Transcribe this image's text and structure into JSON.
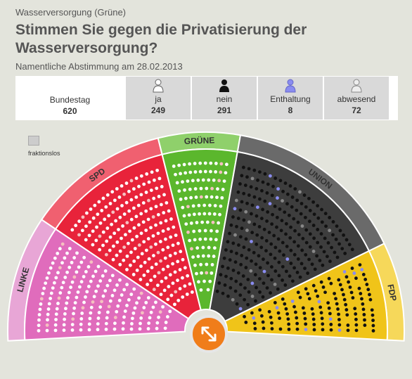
{
  "header": {
    "kicker": "Wasserversorgung (Grüne)",
    "title": "Stimmen Sie gegen die Privatisierung der Wasserversorgung?",
    "subtitle": "Namentliche Abstimmung am 28.02.2013"
  },
  "stats": {
    "total": {
      "label": "Bundestag",
      "value": "620"
    },
    "ja": {
      "label": "ja",
      "value": "249"
    },
    "nein": {
      "label": "nein",
      "value": "291"
    },
    "enthaltung": {
      "label": "Enthaltung",
      "value": "8"
    },
    "abwesend": {
      "label": "abwesend",
      "value": "72"
    }
  },
  "legend": {
    "fraktionslos": "fraktionslos"
  },
  "factions": [
    {
      "name": "LINKE",
      "color": "#e06cbc",
      "band": "#e8a6d6"
    },
    {
      "name": "SPD",
      "color": "#e8233a",
      "band": "#f06070"
    },
    {
      "name": "GRÜNE",
      "color": "#5bb72d",
      "band": "#8fd06b"
    },
    {
      "name": "UNION",
      "color": "#3d3d3d",
      "band": "#6a6a6a"
    },
    {
      "name": "FDP",
      "color": "#f0c419",
      "band": "#f6d85a"
    }
  ],
  "colors": {
    "ja": "#ffffff",
    "nein": "#111111",
    "enthaltung": "#8a8cf0",
    "abwesend": "#888888",
    "center": "#f07d1a"
  },
  "icons": {
    "center": "expand-arrows-icon",
    "person": "person-icon"
  }
}
